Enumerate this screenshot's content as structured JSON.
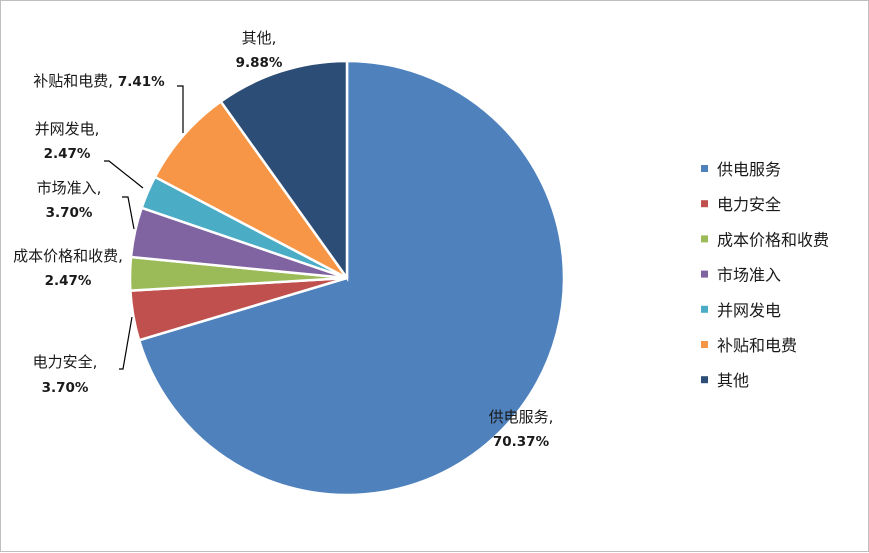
{
  "chart_data": {
    "type": "pie",
    "slices": [
      {
        "name": "供电服务",
        "value": 70.37,
        "label": "供电服务,",
        "pct_label": "70.37%",
        "color": "#4f81bd"
      },
      {
        "name": "电力安全",
        "value": 3.7,
        "label": "电力安全,",
        "pct_label": "3.70%",
        "color": "#c0504d"
      },
      {
        "name": "成本价格和收费",
        "value": 2.47,
        "label": "成本价格和收费,",
        "pct_label": "2.47%",
        "color": "#9bbb59"
      },
      {
        "name": "市场准入",
        "value": 3.7,
        "label": "市场准入,",
        "pct_label": "3.70%",
        "color": "#8064a2"
      },
      {
        "name": "并网发电",
        "value": 2.47,
        "label": "并网发电,",
        "pct_label": "2.47%",
        "color": "#4bacc6"
      },
      {
        "name": "补贴和电费",
        "value": 7.41,
        "label": "补贴和电费,",
        "pct_label": "7.41%",
        "color": "#f79646"
      },
      {
        "name": "其他",
        "value": 9.88,
        "label": "其他,",
        "pct_label": "9.88%",
        "color": "#2c4d75"
      }
    ],
    "legend": {
      "position": "right",
      "items": [
        "供电服务",
        "电力安全",
        "成本价格和收费",
        "市场准入",
        "并网发电",
        "补贴和电费",
        "其他"
      ]
    }
  }
}
